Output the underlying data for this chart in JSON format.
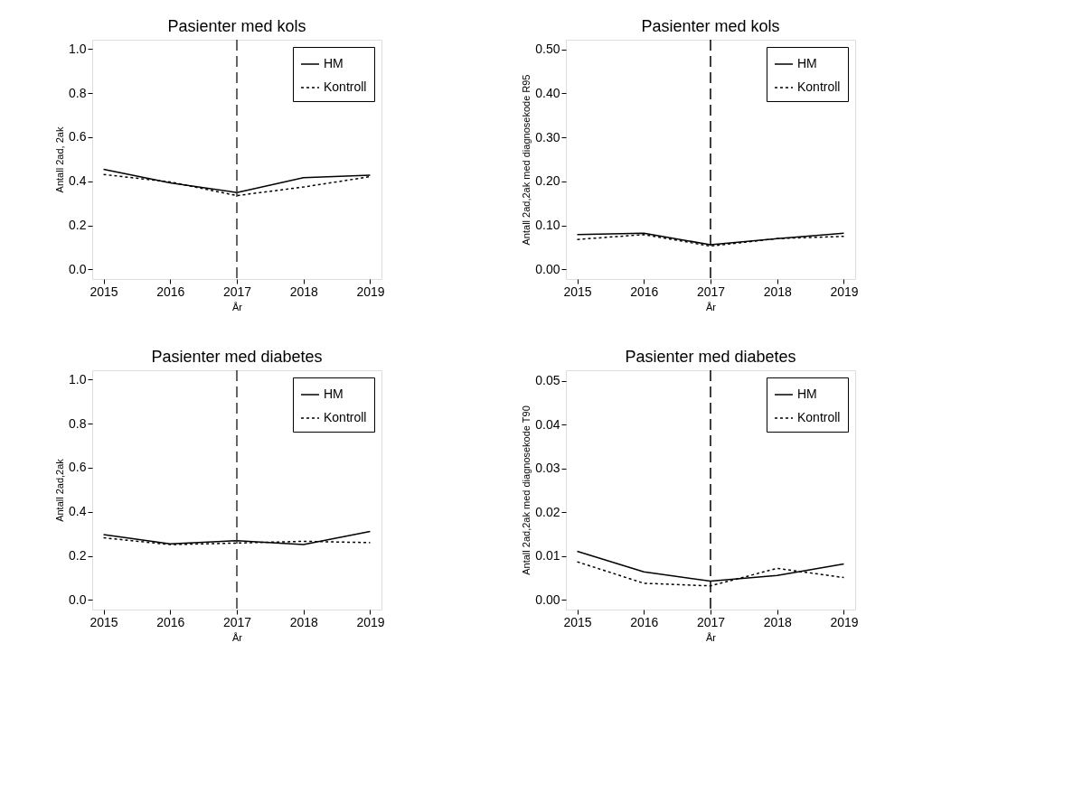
{
  "chart_data": [
    {
      "type": "line",
      "title": "Pasienter med kols",
      "xlabel": "År",
      "ylabel": "Antall 2ad, 2ak",
      "x": [
        2015,
        2016,
        2017,
        2018,
        2019
      ],
      "xlim": [
        2014.83,
        2019.17
      ],
      "xticks": [
        2015,
        2016,
        2017,
        2018,
        2019
      ],
      "ylim": [
        -0.044,
        1.043
      ],
      "yticks": [
        {
          "value": 0,
          "label": "0.0"
        },
        0.2,
        0.4,
        0.6,
        0.8,
        {
          "value": 1,
          "label": "1.0"
        }
      ],
      "grid": false,
      "legend": "top right",
      "series": [
        {
          "name": "HM",
          "color": "#000000",
          "line_style": "solid",
          "values": [
            0.454,
            0.393,
            0.349,
            0.416,
            0.428
          ]
        },
        {
          "name": "Kontroll",
          "color": "#000000",
          "line_style": "dotted",
          "values": [
            0.431,
            0.397,
            0.335,
            0.374,
            0.421
          ]
        }
      ],
      "ref_lines": [
        {
          "axis": "x",
          "value": 2017,
          "color": "#333333",
          "line_style": "dashed"
        }
      ]
    },
    {
      "type": "line",
      "title": "Pasienter med kols",
      "xlabel": "År",
      "ylabel": "Antall 2ad,2ak med diagnosekode R95",
      "x": [
        2015,
        2016,
        2017,
        2018,
        2019
      ],
      "xlim": [
        2014.83,
        2019.17
      ],
      "xticks": [
        2015,
        2016,
        2017,
        2018,
        2019
      ],
      "ylim": [
        -0.022,
        0.522
      ],
      "yticks": [
        {
          "value": 0,
          "label": "0.00"
        },
        {
          "value": 0.1,
          "label": "0.10"
        },
        {
          "value": 0.2,
          "label": "0.20"
        },
        {
          "value": 0.3,
          "label": "0.30"
        },
        {
          "value": 0.4,
          "label": "0.40"
        },
        {
          "value": 0.5,
          "label": "0.50"
        }
      ],
      "grid": false,
      "legend": "top right",
      "series": [
        {
          "name": "HM",
          "color": "#000000",
          "line_style": "solid",
          "values": [
            0.079,
            0.082,
            0.056,
            0.07,
            0.082
          ]
        },
        {
          "name": "Kontroll",
          "color": "#000000",
          "line_style": "dotted",
          "values": [
            0.068,
            0.079,
            0.053,
            0.07,
            0.075
          ]
        }
      ],
      "ref_lines": [
        {
          "axis": "x",
          "value": 2017,
          "color": "#000000",
          "line_style": "dashed"
        }
      ]
    },
    {
      "type": "line",
      "title": "Pasienter med diabetes",
      "xlabel": "År",
      "ylabel": "Antall 2ad,2ak",
      "x": [
        2015,
        2016,
        2017,
        2018,
        2019
      ],
      "xlim": [
        2014.83,
        2019.17
      ],
      "xticks": [
        2015,
        2016,
        2017,
        2018,
        2019
      ],
      "ylim": [
        -0.044,
        1.043
      ],
      "yticks": [
        {
          "value": 0,
          "label": "0.0"
        },
        0.2,
        0.4,
        0.6,
        0.8,
        {
          "value": 1,
          "label": "1.0"
        }
      ],
      "grid": false,
      "legend": "top right",
      "series": [
        {
          "name": "HM",
          "color": "#000000",
          "line_style": "solid",
          "values": [
            0.296,
            0.254,
            0.269,
            0.251,
            0.311
          ]
        },
        {
          "name": "Kontroll",
          "color": "#000000",
          "line_style": "dotted",
          "values": [
            0.282,
            0.251,
            0.258,
            0.266,
            0.26
          ]
        }
      ],
      "ref_lines": [
        {
          "axis": "x",
          "value": 2017,
          "color": "#333333",
          "line_style": "dashed"
        }
      ]
    },
    {
      "type": "line",
      "title": "Pasienter med diabetes",
      "xlabel": "År",
      "ylabel": "Antall 2ad,2ak med diagnosekode T90",
      "x": [
        2015,
        2016,
        2017,
        2018,
        2019
      ],
      "xlim": [
        2014.83,
        2019.17
      ],
      "xticks": [
        2015,
        2016,
        2017,
        2018,
        2019
      ],
      "ylim": [
        -0.0022,
        0.0524
      ],
      "yticks": [
        {
          "value": 0,
          "label": "0.00"
        },
        0.01,
        0.02,
        0.03,
        0.04,
        0.05
      ],
      "grid": false,
      "legend": "top right",
      "series": [
        {
          "name": "HM",
          "color": "#000000",
          "line_style": "solid",
          "values": [
            0.0111,
            0.0064,
            0.0043,
            0.0056,
            0.0082
          ]
        },
        {
          "name": "Kontroll",
          "color": "#000000",
          "line_style": "dotted",
          "values": [
            0.0087,
            0.0038,
            0.0032,
            0.0072,
            0.0051
          ]
        }
      ],
      "ref_lines": [
        {
          "axis": "x",
          "value": 2017,
          "color": "#000000",
          "line_style": "dashed"
        }
      ]
    }
  ]
}
